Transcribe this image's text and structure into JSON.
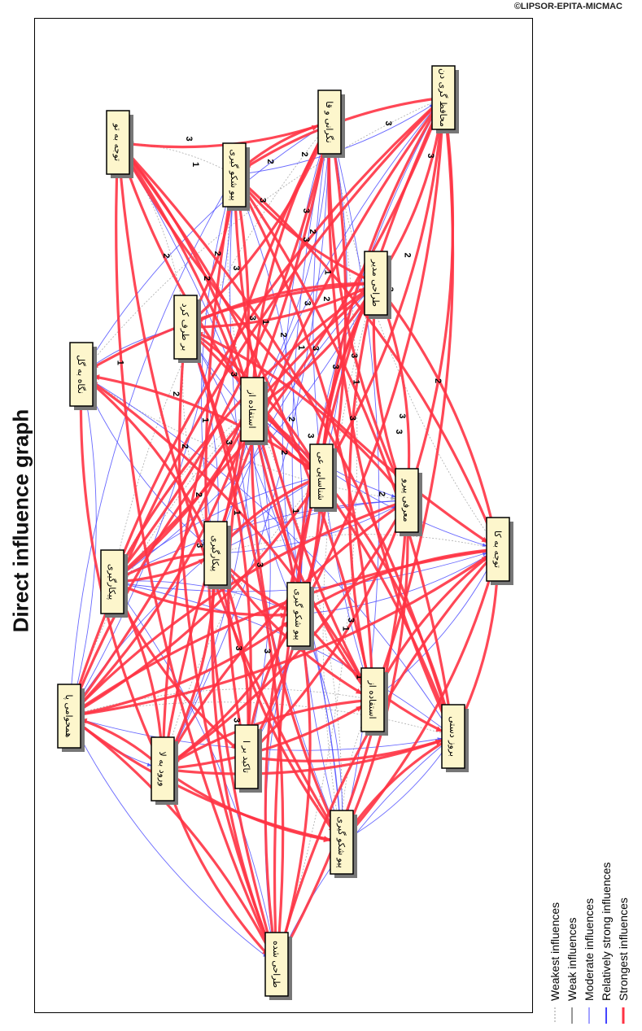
{
  "title": "Direct influence graph",
  "copyright": "©LIPSOR-EPITA-MICMAC",
  "legend": [
    {
      "label": "Weakest influences",
      "style": "weakest",
      "color": "#999999"
    },
    {
      "label": "Weak influences",
      "style": "weak",
      "color": "#333333"
    },
    {
      "label": "Moderate influences",
      "style": "moderate",
      "color": "#4444ff"
    },
    {
      "label": "Relatively strong influences",
      "style": "strong",
      "color": "#4444ff"
    },
    {
      "label": "Strongest influences",
      "style": "strongest",
      "color": "#ff3344"
    }
  ],
  "nodes": [
    {
      "id": "n1",
      "label": "محافظ گری دن"
    },
    {
      "id": "n2",
      "label": "نگرانی و قا"
    },
    {
      "id": "n3",
      "label": "توجه به تو"
    },
    {
      "id": "n4",
      "label": "پیو شکو گیری"
    },
    {
      "id": "n5",
      "label": "طراحی مدیر"
    },
    {
      "id": "n6",
      "label": "بر طرف کرد"
    },
    {
      "id": "n7",
      "label": "نگاه به گل"
    },
    {
      "id": "n8",
      "label": "استفاده از"
    },
    {
      "id": "n9",
      "label": "شناسایی عی"
    },
    {
      "id": "n10",
      "label": "معرفی پیرو"
    },
    {
      "id": "n11",
      "label": "توجه به کا"
    },
    {
      "id": "n12",
      "label": "پیکارگیری"
    },
    {
      "id": "n13",
      "label": "پیکارگیری"
    },
    {
      "id": "n14",
      "label": "پیو شکو گیری"
    },
    {
      "id": "n15",
      "label": "استفاده از"
    },
    {
      "id": "n16",
      "label": "همحوامی پا"
    },
    {
      "id": "n17",
      "label": "بروز دستی"
    },
    {
      "id": "n18",
      "label": "تاکید بر ا"
    },
    {
      "id": "n19",
      "label": "ورود به لا"
    },
    {
      "id": "n20",
      "label": "پیو شکو گیری"
    },
    {
      "id": "n21",
      "label": "طراحی شده"
    }
  ],
  "edge_numbers": [
    "3",
    "3",
    "3",
    "2",
    "2",
    "2",
    "1",
    "3",
    "3",
    "2",
    "3",
    "3",
    "3",
    "2",
    "2",
    "1",
    "3",
    "3",
    "1",
    "1",
    "3",
    "2",
    "3",
    "3",
    "3",
    "2",
    "1",
    "2",
    "3",
    "3",
    "2",
    "2",
    "1",
    "3",
    "3",
    "2",
    "1",
    "1",
    "3",
    "2",
    "3",
    "3",
    "2",
    "3",
    "1",
    "3",
    "2",
    "2",
    "3",
    "1",
    "3",
    "1",
    "3",
    "2"
  ]
}
